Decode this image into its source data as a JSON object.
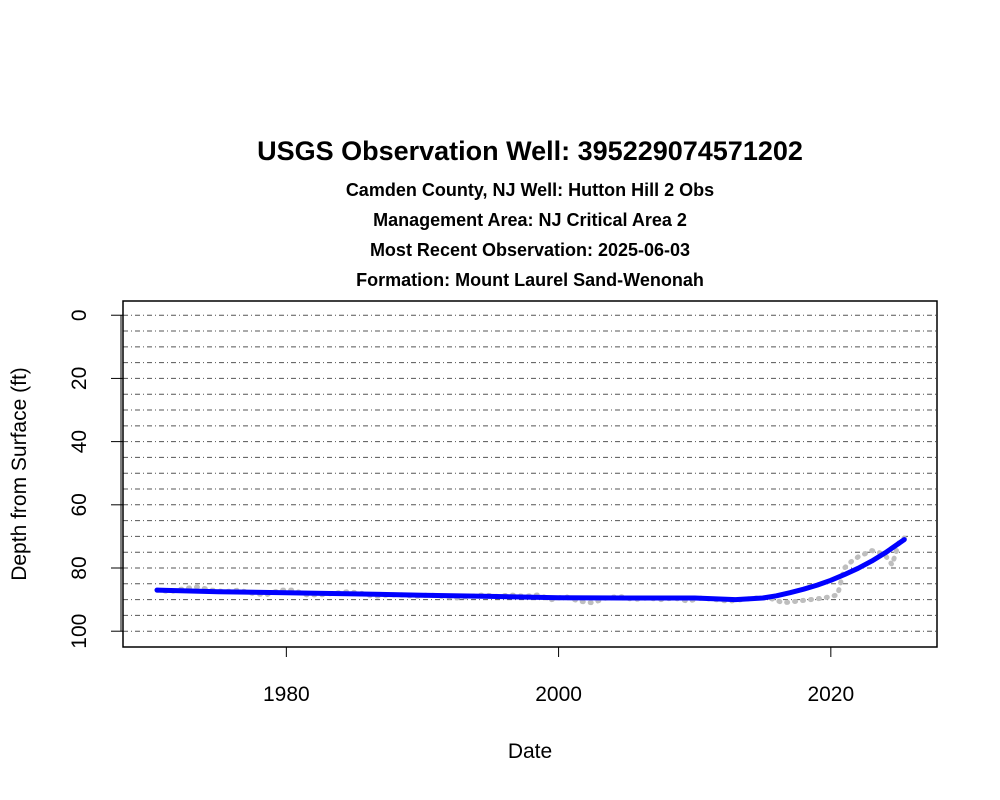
{
  "chart_data": {
    "type": "line",
    "title": "USGS Observation Well:  395229074571202",
    "subtitles": [
      "Camden County, NJ   Well: Hutton Hill 2 Obs",
      "Management Area: NJ Critical Area 2",
      "Most Recent Observation: 2025-06-03",
      "Formation: Mount Laurel Sand-Wenonah"
    ],
    "xlabel": "Date",
    "ylabel": "Depth from Surface (ft)",
    "xlim": [
      1968,
      2027.8
    ],
    "ylim": [
      105,
      -4.5
    ],
    "y_inverted": true,
    "x_ticks": [
      1980,
      2000,
      2020
    ],
    "y_ticks": [
      0,
      20,
      40,
      60,
      80,
      100
    ],
    "gridlines_y": [
      0,
      5,
      10,
      15,
      20,
      25,
      30,
      35,
      40,
      45,
      50,
      55,
      60,
      65,
      70,
      75,
      80,
      85,
      90,
      95,
      100
    ],
    "series": [
      {
        "color": "#bebebe",
        "style": "dotted",
        "x": [
          1970.5,
          1971.5,
          1972.5,
          1973.5,
          1974.5,
          1975.5,
          1976.5,
          1977.5,
          1978.5,
          1979.5,
          1980.5,
          1981.5,
          1982.5,
          1983.5,
          1984.5,
          1985.5,
          1986.5,
          1987.5,
          1988.5,
          1989.5,
          1990.5,
          1991.5,
          1992.5,
          1993.5,
          1994.5,
          1995.5,
          1996.5,
          1997.5,
          1998.5,
          1999.5,
          2000.5,
          2001.5,
          2002.5,
          2003.5,
          2004.5,
          2005.5,
          2006.5,
          2007.5,
          2008.5,
          2009.5,
          2010.5,
          2011.5,
          2012.5,
          2013.5,
          2014.5,
          2015.5,
          2016.5,
          2017.5,
          2018.5,
          2019.5,
          2020.5,
          2021.0,
          2021.5,
          2022.0,
          2022.5,
          2023.0,
          2023.5,
          2024.0,
          2024.5,
          2025.0,
          2025.4
        ],
        "y": [
          87,
          87.5,
          86.5,
          86,
          87,
          87.5,
          87,
          88,
          88.5,
          87,
          87,
          88.5,
          88.5,
          88,
          87.5,
          88,
          89,
          88.5,
          88.5,
          89,
          88.5,
          89,
          89.5,
          89,
          88.5,
          89,
          88.5,
          89,
          88.5,
          90,
          89,
          90.5,
          91,
          89.5,
          89,
          90,
          89.5,
          90,
          89.5,
          90.5,
          89.5,
          90,
          90.5,
          90,
          89.5,
          89.5,
          91,
          90.5,
          90,
          89.5,
          88.5,
          80,
          78,
          76.5,
          75.5,
          74.5,
          75,
          76,
          79,
          72,
          70.5
        ]
      },
      {
        "color": "#0000ff",
        "style": "solid",
        "x": [
          1970.5,
          1975,
          1980,
          1985,
          1990,
          1995,
          2000,
          2005,
          2010,
          2013,
          2015,
          2016,
          2017,
          2018,
          2019,
          2020,
          2021,
          2022,
          2023,
          2024,
          2025.4
        ],
        "y": [
          87,
          87.5,
          87.8,
          88.2,
          88.6,
          89,
          89.4,
          89.5,
          89.5,
          90,
          89.5,
          88.8,
          87.8,
          86.7,
          85.4,
          83.9,
          82.1,
          80.1,
          77.8,
          75.2,
          71
        ]
      }
    ]
  }
}
